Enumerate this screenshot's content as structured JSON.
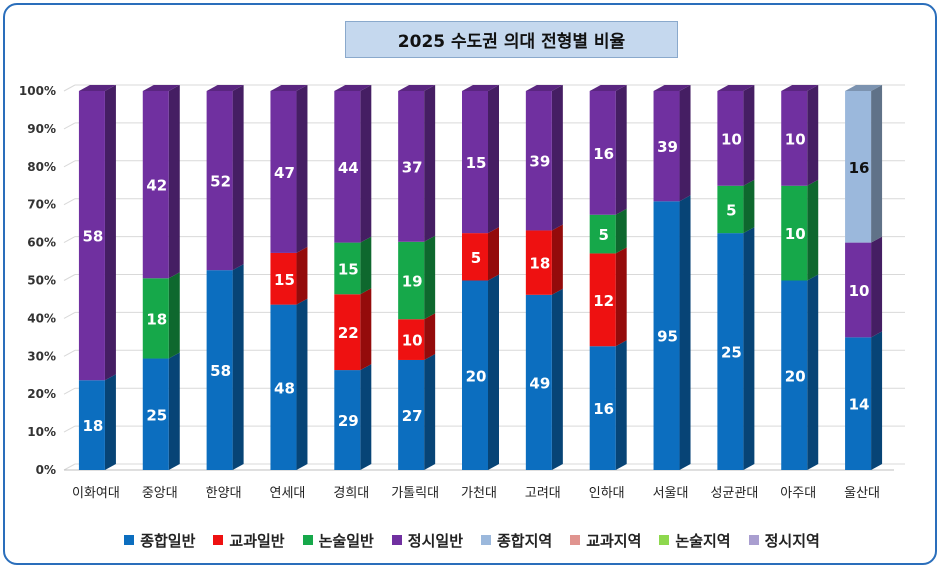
{
  "chart_data": {
    "type": "bar",
    "stacked": "percent",
    "title": "2025 수도권 의대 전형별 비율",
    "categories": [
      "이화여대",
      "중앙대",
      "한양대",
      "연세대",
      "경희대",
      "가톨릭대",
      "가천대",
      "고려대",
      "인하대",
      "서울대",
      "성균관대",
      "아주대",
      "울산대"
    ],
    "ytick_labels": [
      "0%",
      "10%",
      "20%",
      "30%",
      "40%",
      "50%",
      "60%",
      "70%",
      "80%",
      "90%",
      "100%"
    ],
    "ylim": [
      0,
      100
    ],
    "grid": true,
    "legend_position": "bottom",
    "series": [
      {
        "name": "종합일반",
        "color": "#0c6ebf",
        "values": [
          18,
          25,
          58,
          48,
          29,
          27,
          20,
          49,
          16,
          95,
          25,
          20,
          14
        ]
      },
      {
        "name": "교과일반",
        "color": "#ee1111",
        "values": [
          0,
          0,
          0,
          15,
          22,
          10,
          5,
          18,
          12,
          0,
          0,
          0,
          0
        ]
      },
      {
        "name": "논술일반",
        "color": "#16a84a",
        "values": [
          0,
          18,
          0,
          0,
          15,
          19,
          0,
          0,
          5,
          0,
          5,
          10,
          0
        ]
      },
      {
        "name": "정시일반",
        "color": "#7030a0",
        "values": [
          58,
          42,
          52,
          47,
          44,
          37,
          15,
          39,
          16,
          39,
          10,
          10,
          10
        ]
      },
      {
        "name": "종합지역",
        "color": "#9bb8dc",
        "values": [
          0,
          0,
          0,
          0,
          0,
          0,
          0,
          0,
          0,
          0,
          0,
          0,
          16
        ]
      },
      {
        "name": "교과지역",
        "color": "#e0948f",
        "values": [
          0,
          0,
          0,
          0,
          0,
          0,
          0,
          0,
          0,
          0,
          0,
          0,
          0
        ]
      },
      {
        "name": "논술지역",
        "color": "#8ed84e",
        "values": [
          0,
          0,
          0,
          0,
          0,
          0,
          0,
          0,
          0,
          0,
          0,
          0,
          0
        ]
      },
      {
        "name": "정시지역",
        "color": "#a99ed0",
        "values": [
          0,
          0,
          0,
          0,
          0,
          0,
          0,
          0,
          0,
          0,
          0,
          0,
          0
        ]
      }
    ]
  }
}
